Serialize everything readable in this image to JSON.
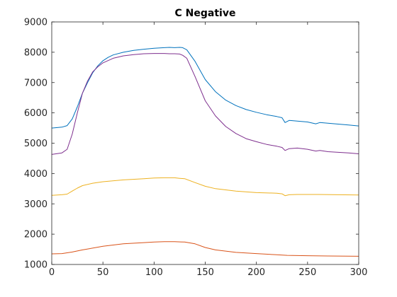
{
  "chart_data": {
    "type": "line",
    "title": "C Negative",
    "xlabel": "",
    "ylabel": "",
    "xlim": [
      0,
      300
    ],
    "ylim": [
      1000,
      9000
    ],
    "xticks": [
      0,
      50,
      100,
      150,
      200,
      250,
      300
    ],
    "yticks": [
      1000,
      2000,
      3000,
      4000,
      5000,
      6000,
      7000,
      8000,
      9000
    ],
    "grid": false,
    "box": true,
    "series": [
      {
        "color": "#0072BD",
        "x": [
          0,
          10,
          15,
          20,
          25,
          30,
          35,
          40,
          45,
          50,
          55,
          60,
          70,
          80,
          90,
          100,
          110,
          115,
          120,
          125,
          128,
          132,
          140,
          150,
          160,
          170,
          180,
          190,
          200,
          210,
          220,
          225,
          228,
          232,
          240,
          250,
          258,
          262,
          270,
          280,
          290,
          300
        ],
        "y": [
          5500,
          5530,
          5580,
          5800,
          6200,
          6650,
          7000,
          7320,
          7550,
          7720,
          7830,
          7910,
          8000,
          8060,
          8100,
          8130,
          8150,
          8160,
          8150,
          8160,
          8150,
          8080,
          7700,
          7100,
          6700,
          6420,
          6240,
          6110,
          6020,
          5940,
          5880,
          5840,
          5680,
          5750,
          5730,
          5700,
          5640,
          5680,
          5660,
          5630,
          5600,
          5570
        ]
      },
      {
        "color": "#D95319",
        "x": [
          0,
          10,
          20,
          30,
          50,
          70,
          90,
          100,
          110,
          120,
          130,
          140,
          150,
          160,
          180,
          200,
          220,
          230,
          250,
          270,
          300
        ],
        "y": [
          1350,
          1360,
          1410,
          1480,
          1600,
          1680,
          1720,
          1740,
          1750,
          1750,
          1740,
          1680,
          1560,
          1480,
          1400,
          1360,
          1320,
          1300,
          1290,
          1280,
          1270
        ]
      },
      {
        "color": "#EDB120",
        "x": [
          0,
          10,
          15,
          20,
          25,
          30,
          40,
          50,
          70,
          90,
          100,
          110,
          120,
          125,
          130,
          140,
          150,
          160,
          180,
          200,
          220,
          225,
          228,
          232,
          240,
          260,
          280,
          300
        ],
        "y": [
          3280,
          3300,
          3320,
          3420,
          3520,
          3600,
          3680,
          3730,
          3790,
          3830,
          3850,
          3860,
          3860,
          3840,
          3830,
          3700,
          3580,
          3500,
          3420,
          3370,
          3350,
          3330,
          3270,
          3300,
          3310,
          3310,
          3300,
          3290
        ]
      },
      {
        "color": "#7E2F8E",
        "x": [
          0,
          10,
          15,
          20,
          25,
          30,
          35,
          40,
          45,
          50,
          60,
          70,
          80,
          90,
          100,
          110,
          115,
          120,
          125,
          128,
          132,
          140,
          150,
          160,
          170,
          180,
          190,
          200,
          210,
          220,
          225,
          228,
          232,
          240,
          250,
          258,
          262,
          270,
          280,
          290,
          300
        ],
        "y": [
          4630,
          4680,
          4800,
          5300,
          6000,
          6650,
          7050,
          7350,
          7520,
          7650,
          7800,
          7880,
          7920,
          7950,
          7960,
          7960,
          7950,
          7950,
          7940,
          7900,
          7800,
          7200,
          6400,
          5900,
          5550,
          5320,
          5150,
          5050,
          4960,
          4900,
          4860,
          4760,
          4820,
          4840,
          4800,
          4740,
          4760,
          4720,
          4700,
          4680,
          4650
        ]
      }
    ]
  }
}
